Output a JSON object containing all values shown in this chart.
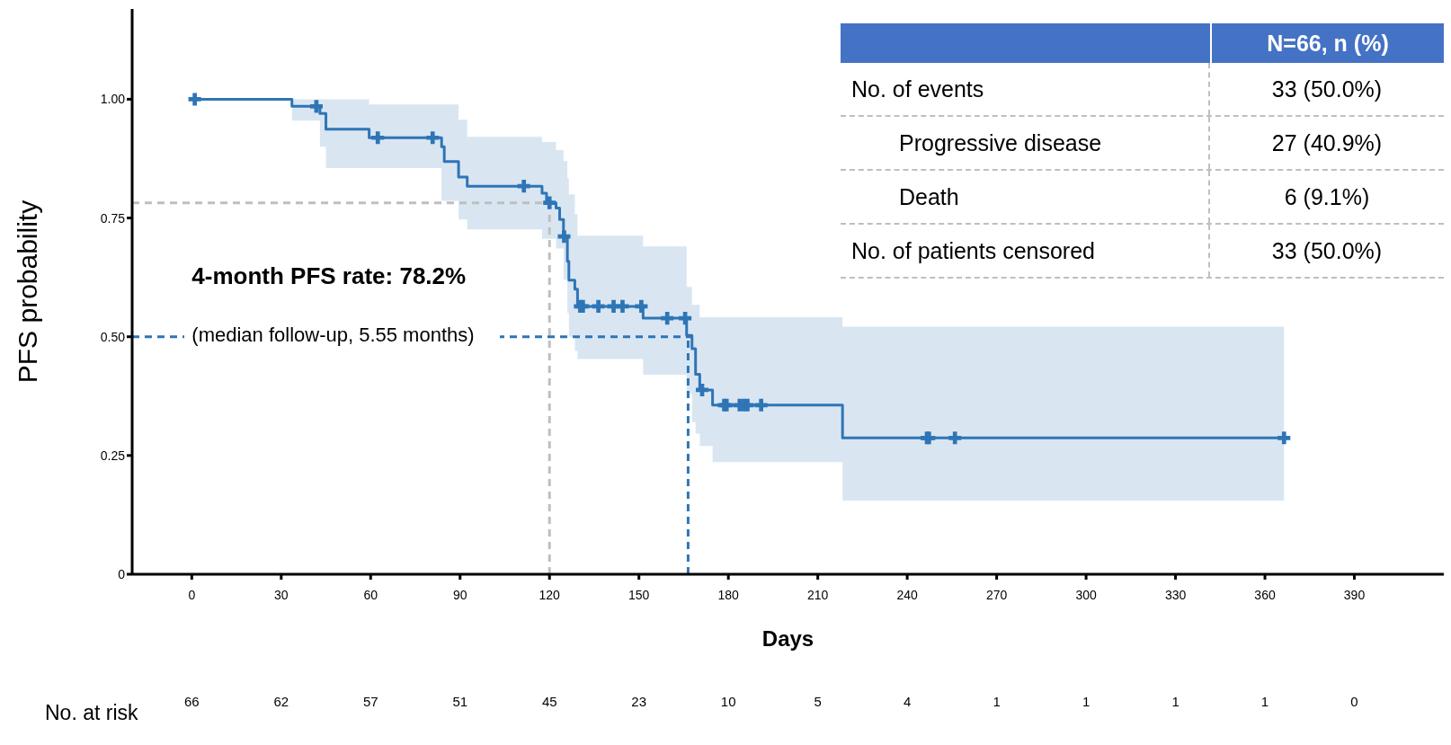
{
  "chart_data": [
    {
      "type": "step",
      "xlabel": "Days",
      "ylabel": "PFS probability",
      "xlim": [
        -20,
        420
      ],
      "ylim": [
        0,
        1.19
      ],
      "xticks": [
        0,
        30,
        60,
        90,
        120,
        150,
        180,
        210,
        240,
        270,
        300,
        330,
        360,
        390
      ],
      "yticks": [
        0,
        {
          "value": 0.25,
          "label": "0.25"
        },
        {
          "value": 0.5,
          "label": "0.50"
        },
        {
          "value": 0.75,
          "label": "0.75"
        },
        {
          "value": 1,
          "label": "1.00"
        }
      ],
      "series": [
        {
          "type": "step",
          "color": "#2e75b6",
          "x": [
            0,
            33.6,
            43,
            45,
            59.5,
            83.8,
            84.7,
            89.5,
            92.4,
            117.5,
            119,
            122.2,
            123.4,
            124.7,
            126,
            126.5,
            128.5,
            129.4,
            151.4,
            166,
            167.8,
            169,
            170.4,
            174.7,
            218.3,
            366.4
          ],
          "values": [
            1,
            0.985,
            0.97,
            0.937,
            0.919,
            0.9,
            0.869,
            0.836,
            0.817,
            0.802,
            0.782,
            0.771,
            0.747,
            0.711,
            0.659,
            0.619,
            0.6,
            0.564,
            0.539,
            0.503,
            0.475,
            0.421,
            0.388,
            0.356,
            0.287,
            0.287
          ],
          "lower": [
            1,
            0.955,
            0.9,
            0.855,
            0.855,
            0.786,
            0.786,
            0.747,
            0.726,
            0.706,
            0.706,
            0.686,
            0.686,
            0.62,
            0.55,
            0.5,
            0.47,
            0.453,
            0.42,
            0.38,
            0.32,
            0.296,
            0.27,
            0.236,
            0.155,
            0.155
          ],
          "upper": [
            1,
            1,
            1,
            1,
            0.989,
            0.989,
            0.989,
            0.957,
            0.921,
            0.91,
            0.91,
            0.893,
            0.893,
            0.87,
            0.834,
            0.8,
            0.758,
            0.713,
            0.69,
            0.605,
            0.567,
            0.567,
            0.541,
            0.541,
            0.521,
            0.521
          ]
        },
        {
          "type": "scatter",
          "color": "#2e75b6",
          "marker": "cross",
          "x": [
            1,
            41.8,
            62.4,
            80.8,
            111.4,
            120,
            124.9,
            130.3,
            131.2,
            136.4,
            141.5,
            144.5,
            150.8,
            159.5,
            165.5,
            171.2,
            178.6,
            179.4,
            183.8,
            185.2,
            186.4,
            191,
            246.6,
            247.3,
            256,
            366.4
          ],
          "values": [
            1,
            0.985,
            0.919,
            0.919,
            0.817,
            0.782,
            0.711,
            0.564,
            0.564,
            0.564,
            0.564,
            0.564,
            0.564,
            0.539,
            0.539,
            0.388,
            0.356,
            0.356,
            0.356,
            0.356,
            0.356,
            0.356,
            0.287,
            0.287,
            0.287,
            0.287
          ]
        }
      ],
      "ref_lines": [
        {
          "axis": "y",
          "value": 0.782,
          "color": "#bfbfbf",
          "line_style": "dashed"
        },
        {
          "axis": "x",
          "value": 120,
          "color": "#bfbfbf",
          "line_style": "dashed"
        },
        {
          "axis": "y",
          "value": 0.5,
          "color": "#2e75b6",
          "line_style": "dashed"
        },
        {
          "axis": "x",
          "value": 166.5,
          "color": "#2e75b6",
          "line_style": "dashed"
        }
      ],
      "annotations": [
        "4-month PFS rate: 78.2%",
        "(median follow-up, 5.55 months)"
      ]
    },
    {
      "type": "other",
      "color": "#4472c4",
      "annotations": [
        "N=66, n (%)",
        "No. of events",
        "33 (50.0%)",
        "Progressive disease",
        "27 (40.9%)",
        "Death",
        "6 (9.1%)",
        "No. of patients censored",
        "33 (50.0%)"
      ]
    },
    {
      "type": "other",
      "annotations": [
        "No. at risk",
        "66",
        "62",
        "57",
        "51",
        "45",
        "23",
        "10",
        "5",
        "4",
        "1",
        "1",
        "1",
        "1",
        "0"
      ]
    }
  ]
}
